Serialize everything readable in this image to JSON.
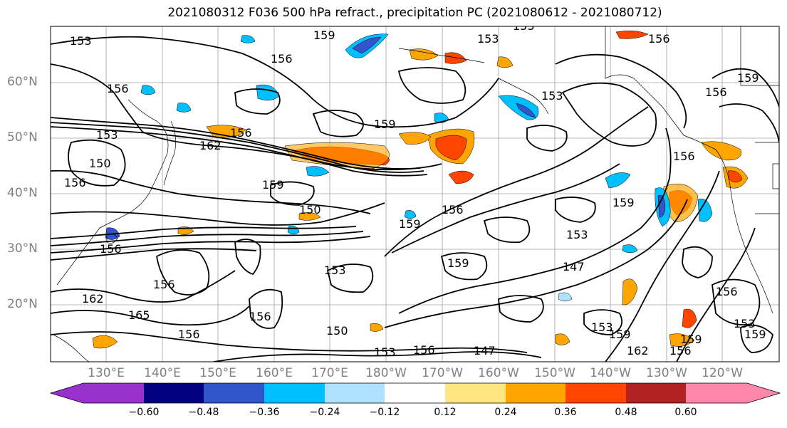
{
  "title": "2021080312 F036 500 hPa refract., precipitation PC (2021080612 - 2021080712)",
  "lat_labels": [
    "60°N",
    "50°N",
    "40°N",
    "30°N",
    "20°N"
  ],
  "lon_labels": [
    "130°E",
    "140°E",
    "150°E",
    "160°E",
    "170°E",
    "180°W",
    "170°W",
    "160°W",
    "150°W",
    "140°W",
    "130°W",
    "120°W"
  ],
  "colorbar": {
    "ticks": [
      "−0.60",
      "−0.48",
      "−0.36",
      "−0.24",
      "−0.12",
      "0.12",
      "0.24",
      "0.36",
      "0.48",
      "0.60"
    ],
    "colors": [
      "#9932cc",
      "#000080",
      "#3355cc",
      "#00bfff",
      "#b0e2ff",
      "#ffffff",
      "#ffe680",
      "#ffa500",
      "#ff4500",
      "#b22222",
      "#ff88aa"
    ]
  },
  "contour_labels": [
    "153",
    "159",
    "156",
    "153",
    "153",
    "156",
    "159",
    "156",
    "153",
    "159",
    "156",
    "153",
    "162",
    "150",
    "156",
    "159",
    "156",
    "159",
    "153",
    "156",
    "159",
    "153",
    "159",
    "147",
    "156",
    "156",
    "162",
    "165",
    "156",
    "156",
    "150",
    "153",
    "156",
    "147",
    "153",
    "159",
    "162",
    "156",
    "159",
    "156",
    "153",
    "159",
    "156",
    "150"
  ]
}
